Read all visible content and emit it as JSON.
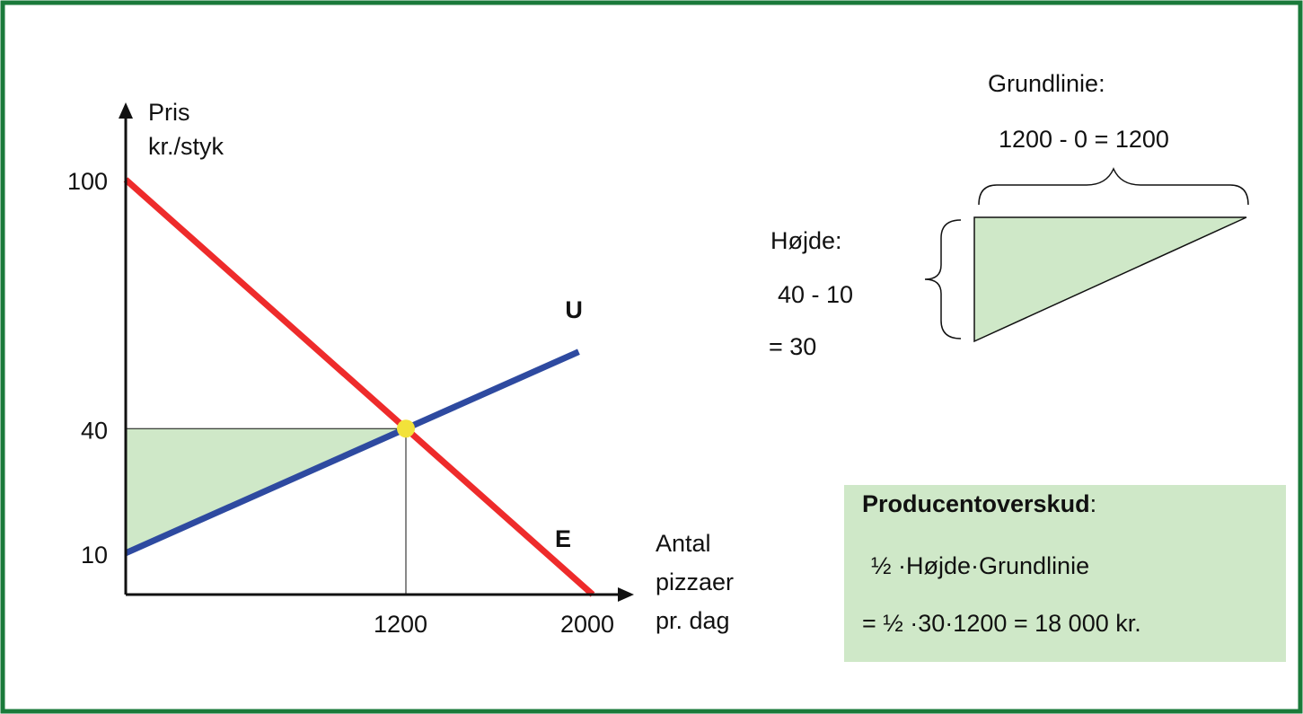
{
  "chart_data": {
    "type": "line",
    "y_label": [
      "Pris",
      "kr./styk"
    ],
    "x_label": [
      "Antal",
      "pizzaer",
      "pr. dag"
    ],
    "xlim": [
      0,
      2000
    ],
    "ylim": [
      0,
      100
    ],
    "xticks": [
      1200,
      2000
    ],
    "yticks": [
      10,
      40,
      100
    ],
    "series": [
      {
        "name": "E",
        "color": "#ee2b2b",
        "x": [
          0,
          2000
        ],
        "values": [
          100,
          0
        ]
      },
      {
        "name": "U",
        "color": "#2e4aa0",
        "x": [
          0,
          1940
        ],
        "values": [
          10,
          58.5
        ]
      }
    ],
    "equilibrium": {
      "x": 1200,
      "y": 40,
      "color": "#f2e23a"
    },
    "surplus_color": "#cfe8c8"
  },
  "annotations": {
    "baseline_title": "Grundlinie:",
    "baseline_calc": "1200 - 0 = 1200",
    "height_title": "Højde:",
    "height_calc": "40 - 10",
    "height_result": "= 30"
  },
  "box": {
    "title": "Producentoverskud",
    "title_suffix": ":",
    "formula": "½ ·Højde·Grundlinie",
    "result": "= ½ ·30·1200 = 18 000 kr."
  }
}
